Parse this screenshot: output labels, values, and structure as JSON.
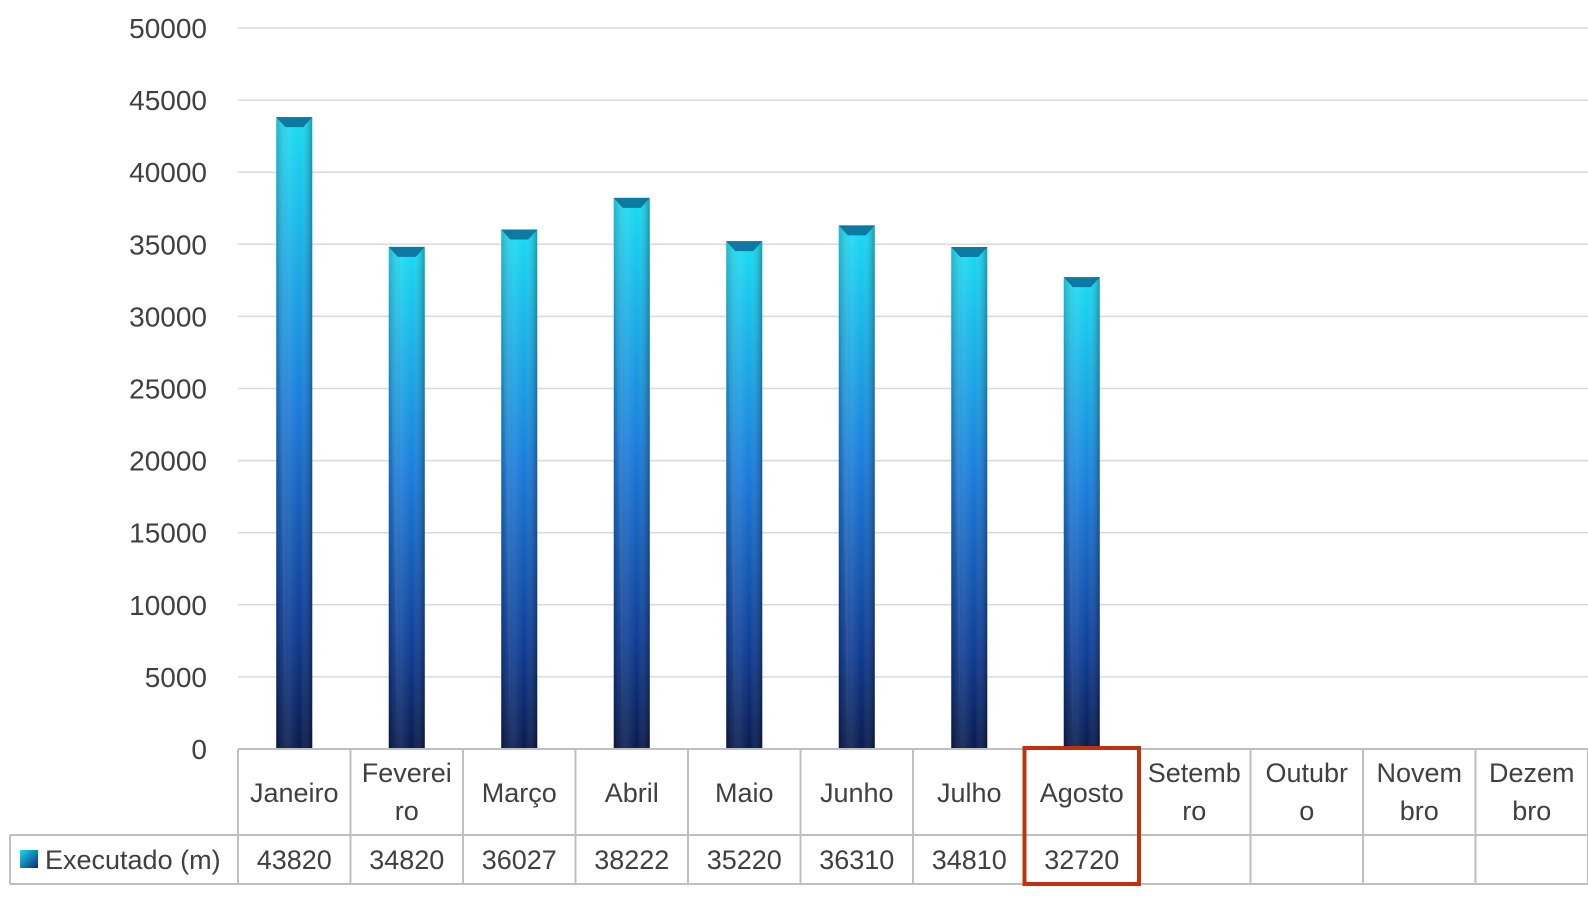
{
  "chart_data": {
    "type": "bar",
    "categories": [
      [
        "Janeiro"
      ],
      [
        "Feverei",
        "ro"
      ],
      [
        "Março"
      ],
      [
        "Abril"
      ],
      [
        "Maio"
      ],
      [
        "Junho"
      ],
      [
        "Julho"
      ],
      [
        "Agosto"
      ],
      [
        "Setemb",
        "ro"
      ],
      [
        "Outubr",
        "o"
      ],
      [
        "Novem",
        "bro"
      ],
      [
        "Dezem",
        "bro"
      ]
    ],
    "series": [
      {
        "name": "Executado (m)",
        "values": [
          43820,
          34820,
          36027,
          38222,
          35220,
          36310,
          34810,
          32720,
          null,
          null,
          null,
          null
        ]
      }
    ],
    "value_labels": [
      "43820",
      "34820",
      "36027",
      "38222",
      "35220",
      "36310",
      "34810",
      "32720",
      "",
      "",
      "",
      ""
    ],
    "yticks": [
      "0",
      "5000",
      "10000",
      "15000",
      "20000",
      "25000",
      "30000",
      "35000",
      "40000",
      "45000",
      "50000"
    ],
    "ylim": [
      0,
      50000
    ],
    "grid": true,
    "legend": "data-table",
    "highlighted_category": "Agosto",
    "colors": {
      "bar_top": "#15d2ec",
      "bar_mid": "#1a6fd4",
      "bar_bottom": "#0a1f5c",
      "highlight": "#c0320f",
      "grid": "#d9d9d9",
      "table_border": "#bfbfbf"
    }
  }
}
